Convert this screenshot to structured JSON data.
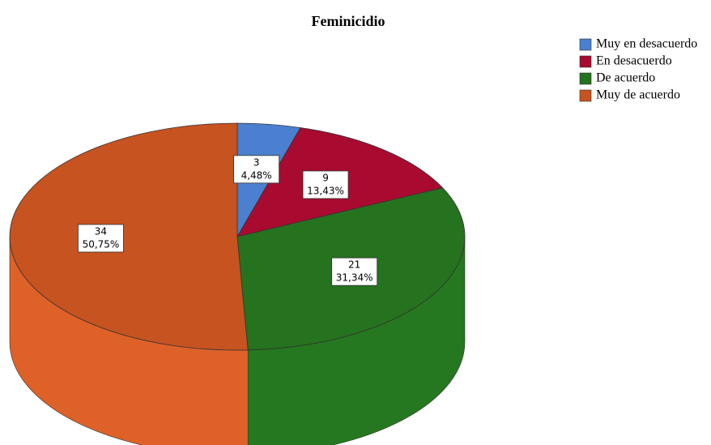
{
  "chart_data": {
    "type": "pie",
    "title": "Feminicidio",
    "categories": [
      "Muy en desacuerdo",
      "En desacuerdo",
      "De acuerdo",
      "Muy de acuerdo"
    ],
    "values": [
      3,
      9,
      21,
      34
    ],
    "percentages": [
      4.48,
      13.43,
      31.34,
      50.75
    ],
    "percentage_labels": [
      "4,48%",
      "13,43%",
      "31,34%",
      "50,75%"
    ],
    "colors": [
      "#4a80cf",
      "#a80b2f",
      "#25721f",
      "#c65320"
    ],
    "side_colors": [
      "#3f6fb5",
      "#8e0a27",
      "#25781f",
      "#de6128"
    ],
    "legend": "top-right"
  }
}
